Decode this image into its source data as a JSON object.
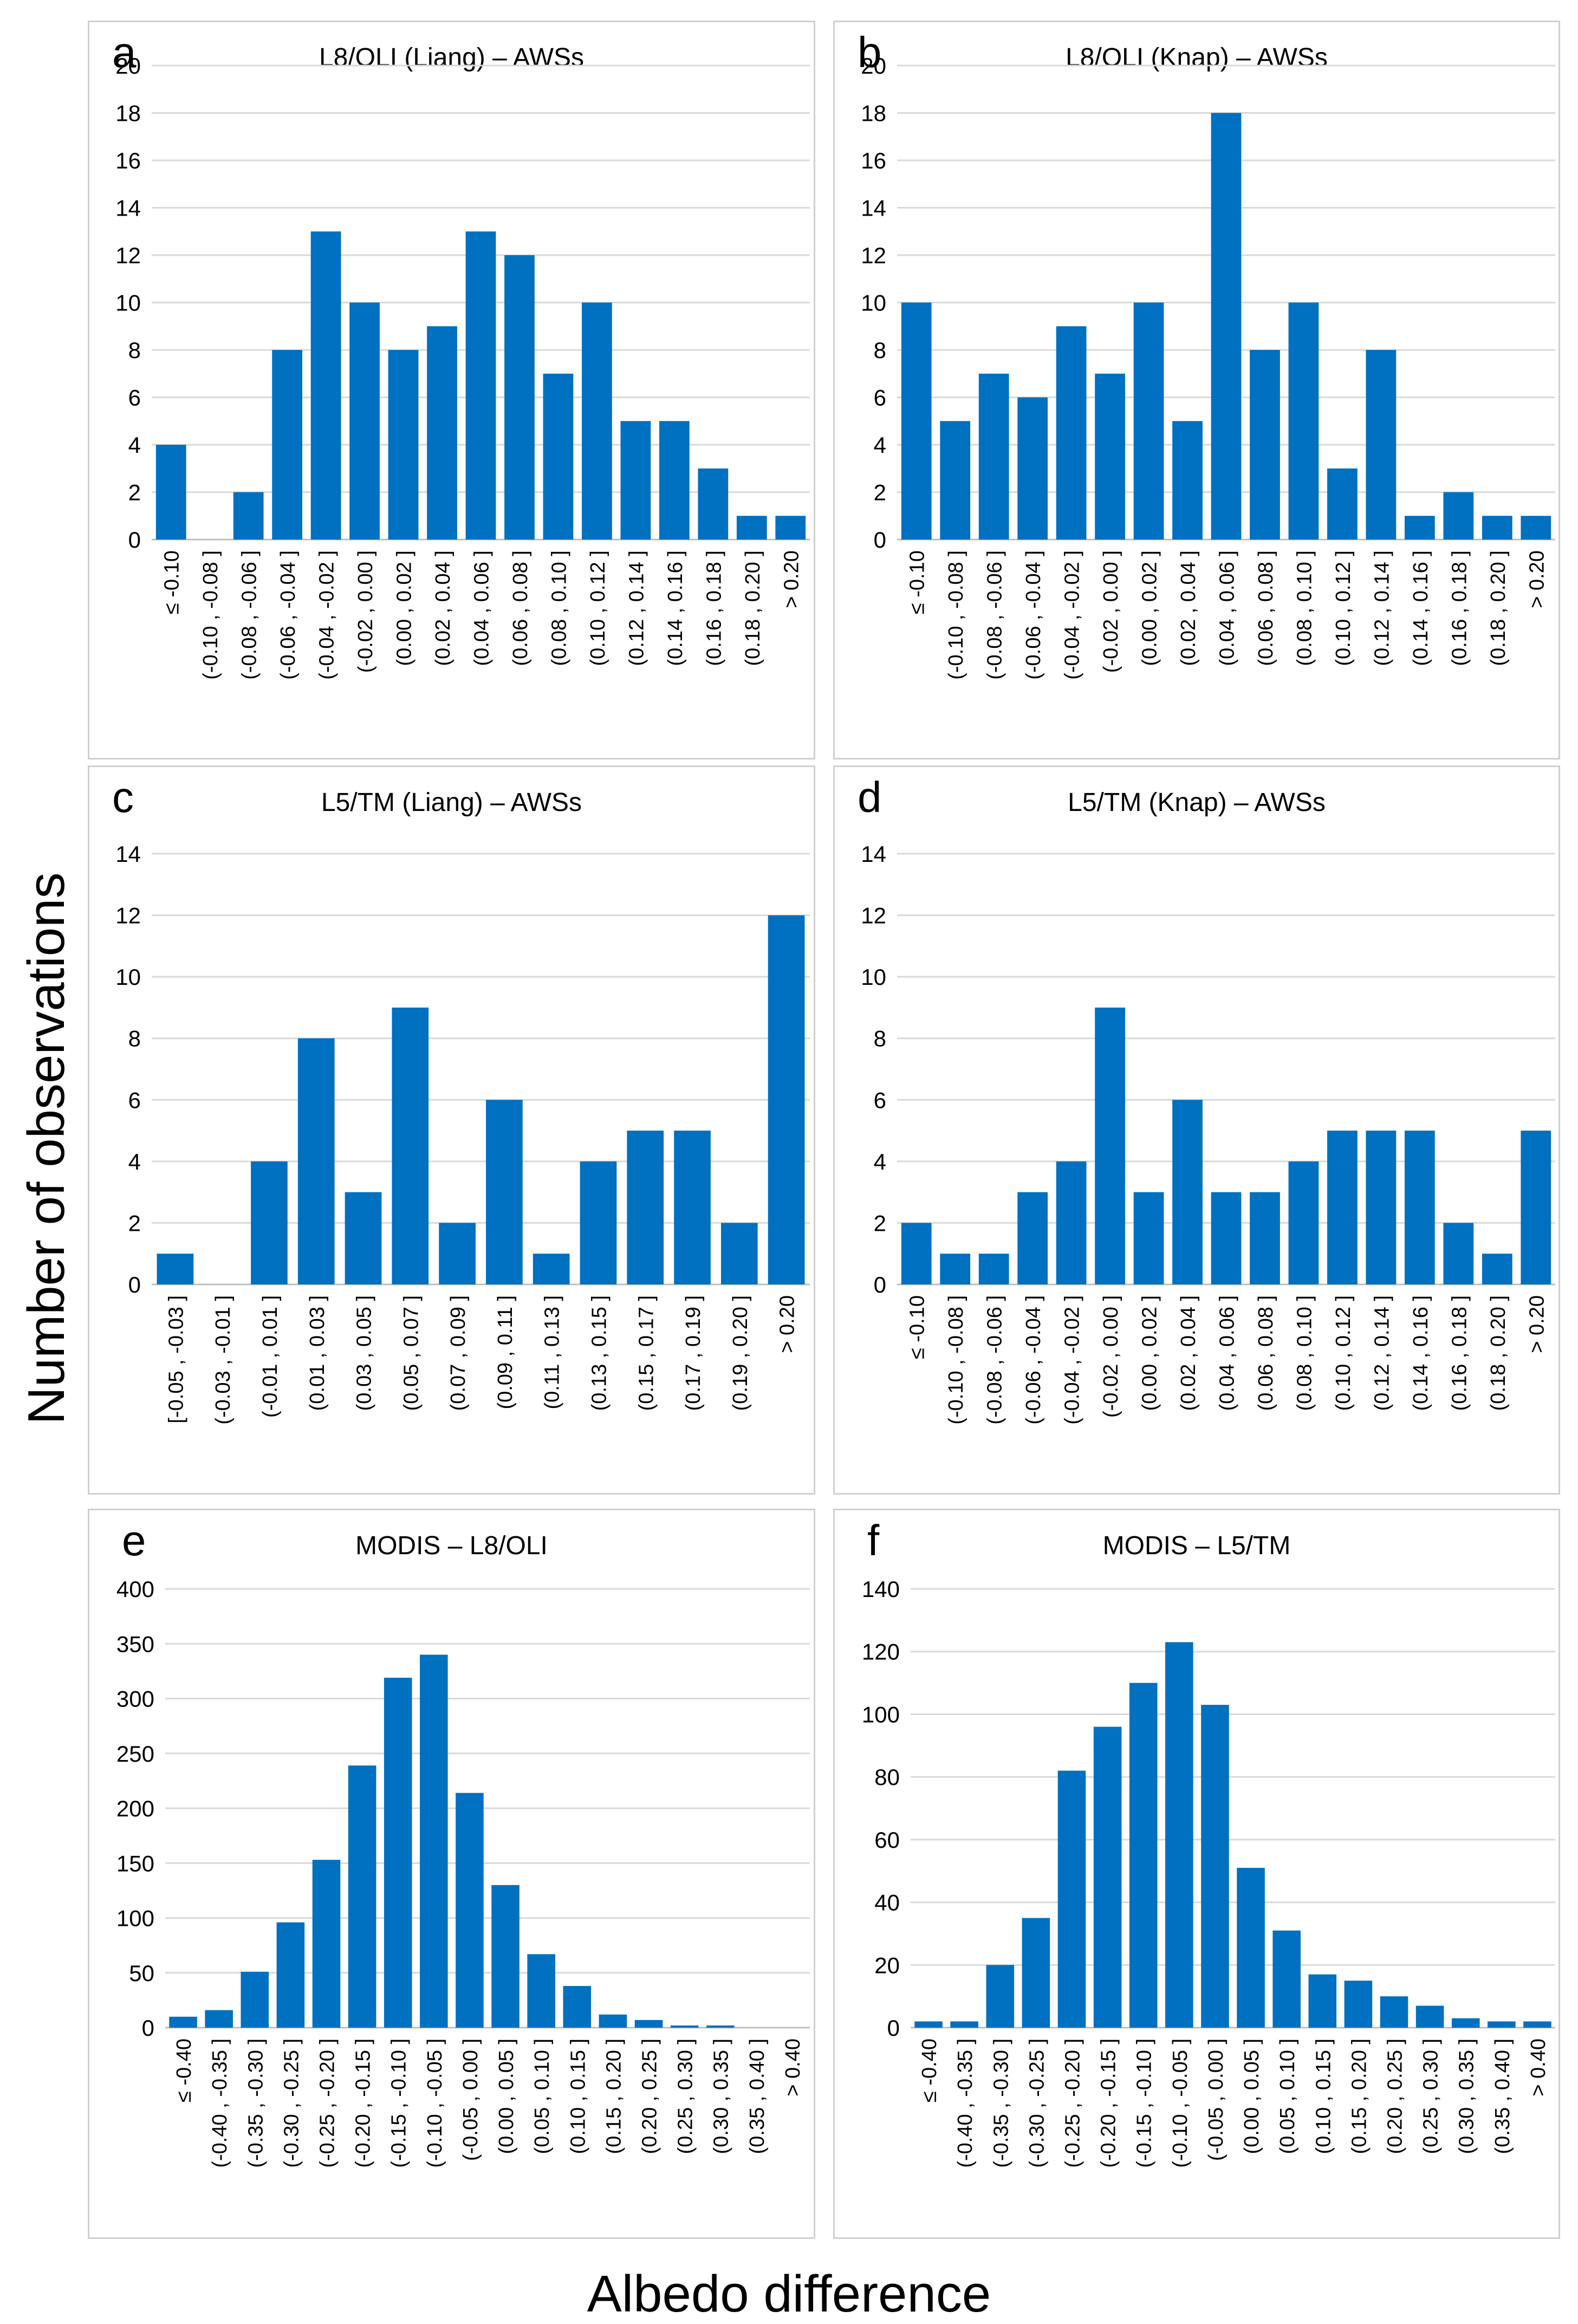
{
  "y_axis_label": "Number of observations",
  "x_axis_label": "Albedo difference",
  "chart_data": [
    {
      "letter": "a",
      "type": "bar",
      "title": "L8/OLI (Liang) – AWSs",
      "xlabel": "",
      "ylabel": "Number of observations",
      "ylim": [
        0,
        20
      ],
      "yticks": [
        0,
        2,
        4,
        6,
        8,
        10,
        12,
        14,
        16,
        18,
        20
      ],
      "categories": [
        "≤ -0.10",
        "(-0.10 , -0.08 ]",
        "(-0.08 , -0.06 ]",
        "(-0.06 , -0.04 ]",
        "(-0.04 , -0.02 ]",
        "(-0.02 , 0.00 ]",
        "(0.00 , 0.02 ]",
        "(0.02 , 0.04 ]",
        "(0.04 , 0.06 ]",
        "(0.06 , 0.08 ]",
        "(0.08 , 0.10 ]",
        "(0.10 , 0.12 ]",
        "(0.12 , 0.14 ]",
        "(0.14 , 0.16 ]",
        "(0.16 , 0.18 ]",
        "(0.18 , 0.20 ]",
        "> 0.20"
      ],
      "values": [
        4,
        0,
        2,
        8,
        13,
        10,
        8,
        9,
        13,
        12,
        7,
        10,
        5,
        5,
        3,
        1,
        1
      ],
      "bar_color": "#0070C0",
      "grid": true
    },
    {
      "letter": "b",
      "type": "bar",
      "title": "L8/OLI (Knap) – AWSs",
      "xlabel": "",
      "ylabel": "Number of observations",
      "ylim": [
        0,
        20
      ],
      "yticks": [
        0,
        2,
        4,
        6,
        8,
        10,
        12,
        14,
        16,
        18,
        20
      ],
      "categories": [
        "≤ -0.10",
        "(-0.10 , -0.08 ]",
        "(-0.08 , -0.06 ]",
        "(-0.06 , -0.04 ]",
        "(-0.04 , -0.02 ]",
        "(-0.02 , 0.00 ]",
        "(0.00 , 0.02 ]",
        "(0.02 , 0.04 ]",
        "(0.04 , 0.06 ]",
        "(0.06 , 0.08 ]",
        "(0.08 , 0.10 ]",
        "(0.10 , 0.12 ]",
        "(0.12 , 0.14 ]",
        "(0.14 , 0.16 ]",
        "(0.16 , 0.18 ]",
        "(0.18 , 0.20 ]",
        "> 0.20"
      ],
      "values": [
        10,
        5,
        7,
        6,
        9,
        7,
        10,
        5,
        18,
        8,
        10,
        3,
        8,
        1,
        2,
        1,
        1
      ],
      "bar_color": "#0070C0",
      "grid": true
    },
    {
      "letter": "c",
      "type": "bar",
      "title": "L5/TM (Liang) – AWSs",
      "xlabel": "",
      "ylabel": "Number of observations",
      "ylim": [
        0,
        14
      ],
      "yticks": [
        0,
        2,
        4,
        6,
        8,
        10,
        12,
        14
      ],
      "categories": [
        "[-0.05 , -0.03 ]",
        "(-0.03 , -0.01 ]",
        "(-0.01 , 0.01 ]",
        "(0.01 , 0.03 ]",
        "(0.03 , 0.05 ]",
        "(0.05 , 0.07 ]",
        "(0.07 , 0.09 ]",
        "(0.09 , 0.11 ]",
        "(0.11 , 0.13 ]",
        "(0.13 , 0.15 ]",
        "(0.15 , 0.17 ]",
        "(0.17 , 0.19 ]",
        "(0.19 , 0.20 ]",
        "> 0.20"
      ],
      "values": [
        1,
        0,
        4,
        8,
        3,
        9,
        2,
        6,
        1,
        4,
        5,
        5,
        2,
        12
      ],
      "bar_color": "#0070C0",
      "grid": true
    },
    {
      "letter": "d",
      "type": "bar",
      "title": "L5/TM (Knap) – AWSs",
      "xlabel": "",
      "ylabel": "Number of observations",
      "ylim": [
        0,
        14
      ],
      "yticks": [
        0,
        2,
        4,
        6,
        8,
        10,
        12,
        14
      ],
      "categories": [
        "≤ -0.10",
        "(-0.10 , -0.08 ]",
        "(-0.08 , -0.06 ]",
        "(-0.06 , -0.04 ]",
        "(-0.04 , -0.02 ]",
        "(-0.02 , 0.00 ]",
        "(0.00 , 0.02 ]",
        "(0.02 , 0.04 ]",
        "(0.04 , 0.06 ]",
        "(0.06 , 0.08 ]",
        "(0.08 , 0.10 ]",
        "(0.10 , 0.12 ]",
        "(0.12 , 0.14 ]",
        "(0.14 , 0.16 ]",
        "(0.16 , 0.18 ]",
        "(0.18 , 0.20 ]",
        "> 0.20"
      ],
      "values": [
        2,
        1,
        1,
        3,
        4,
        9,
        3,
        6,
        3,
        3,
        4,
        5,
        5,
        5,
        2,
        1,
        5
      ],
      "bar_color": "#0070C0",
      "grid": true
    },
    {
      "letter": "e",
      "type": "bar",
      "title": "MODIS – L8/OLI",
      "xlabel": "",
      "ylabel": "Number of observations",
      "ylim": [
        0,
        400
      ],
      "yticks": [
        0,
        50,
        100,
        150,
        200,
        250,
        300,
        350,
        400
      ],
      "categories": [
        "≤ -0.40",
        "(-0.40 , -0.35 ]",
        "(-0.35 , -0.30 ]",
        "(-0.30 , -0.25 ]",
        "(-0.25 , -0.20 ]",
        "(-0.20 , -0.15 ]",
        "(-0.15 , -0.10 ]",
        "(-0.10 , -0.05 ]",
        "(-0.05 , 0.00 ]",
        "(0.00 , 0.05 ]",
        "(0.05 , 0.10 ]",
        "(0.10 , 0.15 ]",
        "(0.15 , 0.20 ]",
        "(0.20 , 0.25 ]",
        "(0.25 , 0.30 ]",
        "(0.30 , 0.35 ]",
        "(0.35 , 0.40 ]",
        "> 0.40"
      ],
      "values": [
        10,
        16,
        51,
        96,
        153,
        239,
        319,
        340,
        214,
        130,
        67,
        38,
        12,
        7,
        2,
        2,
        0,
        0
      ],
      "bar_color": "#0070C0",
      "grid": true
    },
    {
      "letter": "f",
      "type": "bar",
      "title": "MODIS – L5/TM",
      "xlabel": "",
      "ylabel": "Number of observations",
      "ylim": [
        0,
        140
      ],
      "yticks": [
        0,
        20,
        40,
        60,
        80,
        100,
        120,
        140
      ],
      "categories": [
        "≤ -0.40",
        "(-0.40 , -0.35 ]",
        "(-0.35 , -0.30 ]",
        "(-0.30 , -0.25 ]",
        "(-0.25 , -0.20 ]",
        "(-0.20 , -0.15 ]",
        "(-0.15 , -0.10 ]",
        "(-0.10 , -0.05 ]",
        "(-0.05 , 0.00 ]",
        "(0.00 , 0.05 ]",
        "(0.05 , 0.10 ]",
        "(0.10 , 0.15 ]",
        "(0.15 , 0.20 ]",
        "(0.20 , 0.25 ]",
        "(0.25 , 0.30 ]",
        "(0.30 , 0.35 ]",
        "(0.35 , 0.40 ]",
        "> 0.40"
      ],
      "values": [
        2,
        2,
        20,
        35,
        82,
        96,
        110,
        123,
        103,
        51,
        31,
        17,
        15,
        10,
        7,
        3,
        2,
        2
      ],
      "bar_color": "#0070C0",
      "grid": true
    }
  ]
}
